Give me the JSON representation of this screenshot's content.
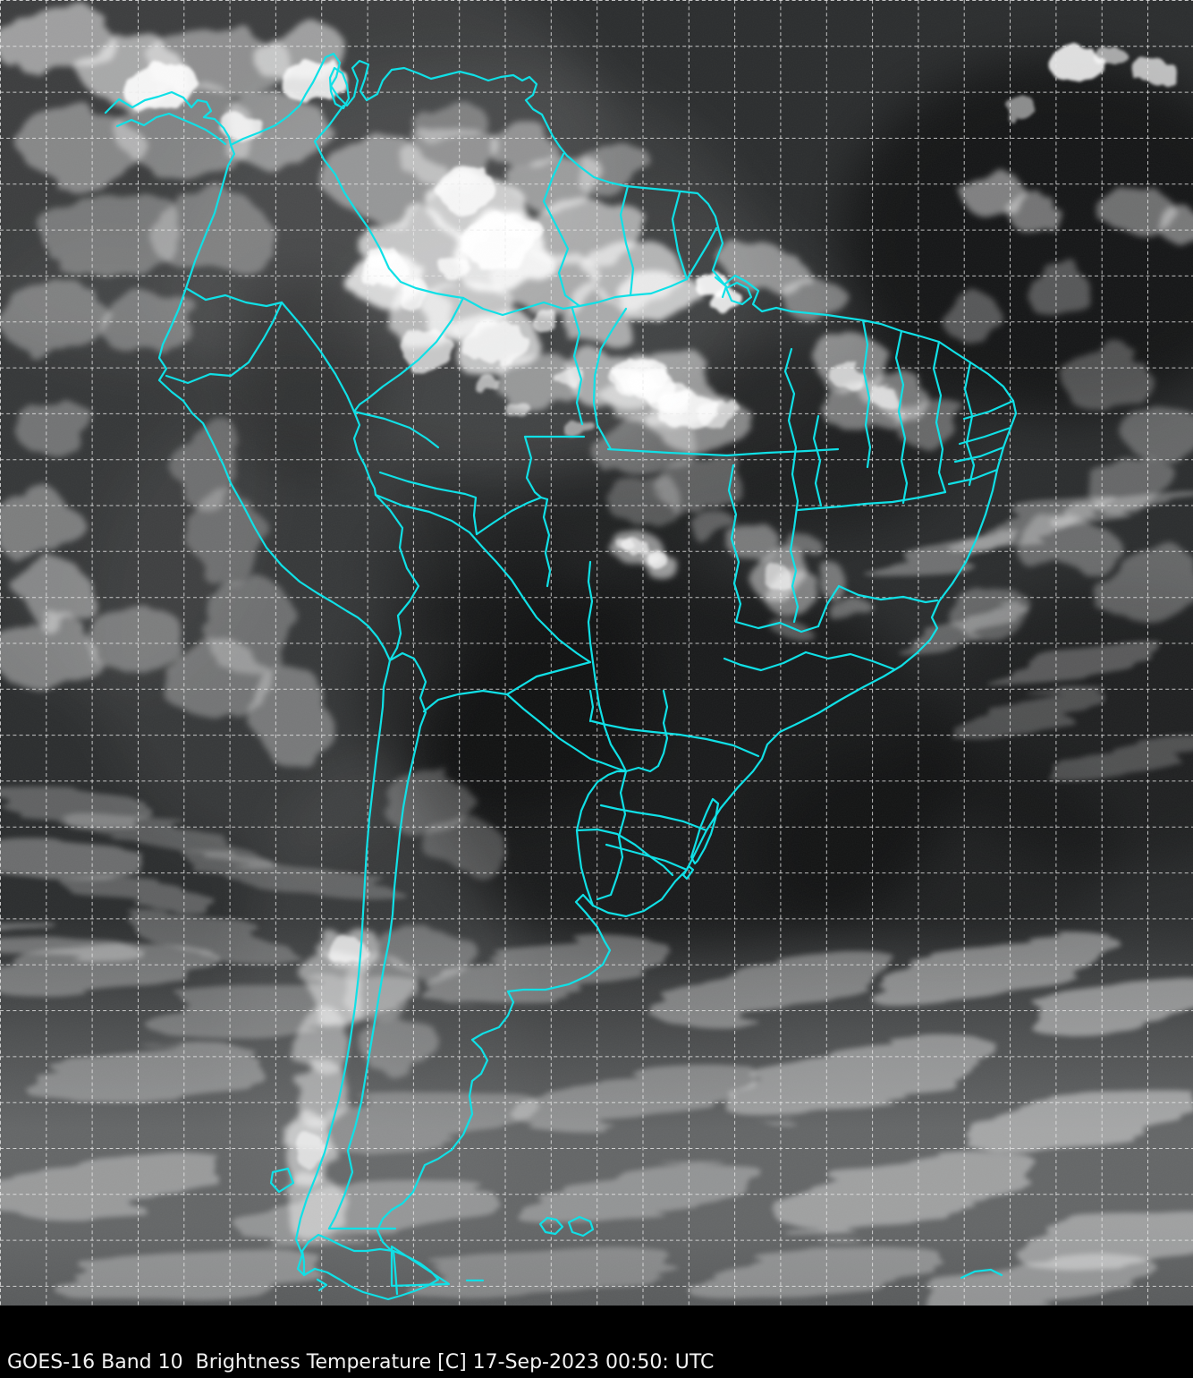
{
  "caption": {
    "text": "GOES-16 Band 10  Brightness Temperature [C] 17-Sep-2023 00:50: UTC",
    "satellite": "GOES-16",
    "band": "Band 10",
    "product": "Brightness Temperature",
    "units": "C",
    "date": "17-Sep-2023",
    "time": "00:50 UTC"
  },
  "map": {
    "colors": {
      "border": "#10e0e6",
      "grid": "#eaeaea",
      "ocean_base": "#2b2d2e",
      "space_background": "#000000",
      "caption_text": "#f2f2f2"
    }
  }
}
